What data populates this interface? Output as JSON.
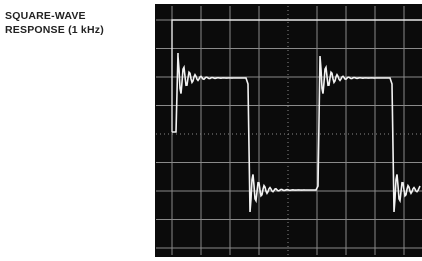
{
  "caption": {
    "lines": [
      "SQUARE-WAVE",
      "RESPONSE (1 kHz)"
    ]
  }
}
